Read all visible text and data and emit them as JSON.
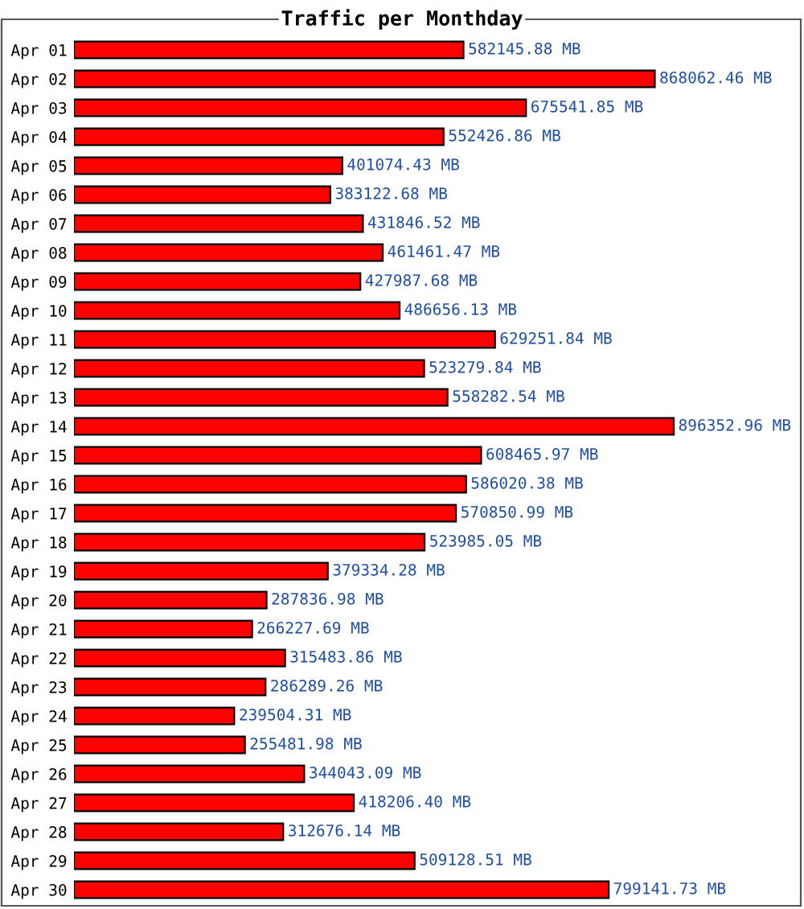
{
  "chart_data": {
    "type": "bar",
    "orientation": "horizontal",
    "title": "Traffic per Monthday",
    "color": "#ff0000",
    "categories": [
      "Apr 01",
      "Apr 02",
      "Apr 03",
      "Apr 04",
      "Apr 05",
      "Apr 06",
      "Apr 07",
      "Apr 08",
      "Apr 09",
      "Apr 10",
      "Apr 11",
      "Apr 12",
      "Apr 13",
      "Apr 14",
      "Apr 15",
      "Apr 16",
      "Apr 17",
      "Apr 18",
      "Apr 19",
      "Apr 20",
      "Apr 21",
      "Apr 22",
      "Apr 23",
      "Apr 24",
      "Apr 25",
      "Apr 26",
      "Apr 27",
      "Apr 28",
      "Apr 29",
      "Apr 30"
    ],
    "values": [
      582145.88,
      868062.46,
      675541.85,
      552426.86,
      401074.43,
      383122.68,
      431846.52,
      461461.47,
      427987.68,
      486656.13,
      629251.84,
      523279.84,
      558282.54,
      896352.96,
      608465.97,
      586020.38,
      570850.99,
      523985.05,
      379334.28,
      287836.98,
      266227.69,
      315483.86,
      286289.26,
      239504.31,
      255481.98,
      344043.09,
      418206.4,
      312676.14,
      509128.51,
      799141.73
    ],
    "value_labels": [
      "582145.88 MB",
      "868062.46 MB",
      "675541.85 MB",
      "552426.86 MB",
      "401074.43 MB",
      "383122.68 MB",
      "431846.52 MB",
      "461461.47 MB",
      "427987.68 MB",
      "486656.13 MB",
      "629251.84 MB",
      "523279.84 MB",
      "558282.54 MB",
      "896352.96 MB",
      "608465.97 MB",
      "586020.38 MB",
      "570850.99 MB",
      "523985.05 MB",
      "379334.28 MB",
      "287836.98 MB",
      "266227.69 MB",
      "315483.86 MB",
      "286289.26 MB",
      "239504.31 MB",
      "255481.98 MB",
      "344043.09 MB",
      "418206.40 MB",
      "312676.14 MB",
      "509128.51 MB",
      "799141.73 MB"
    ]
  }
}
